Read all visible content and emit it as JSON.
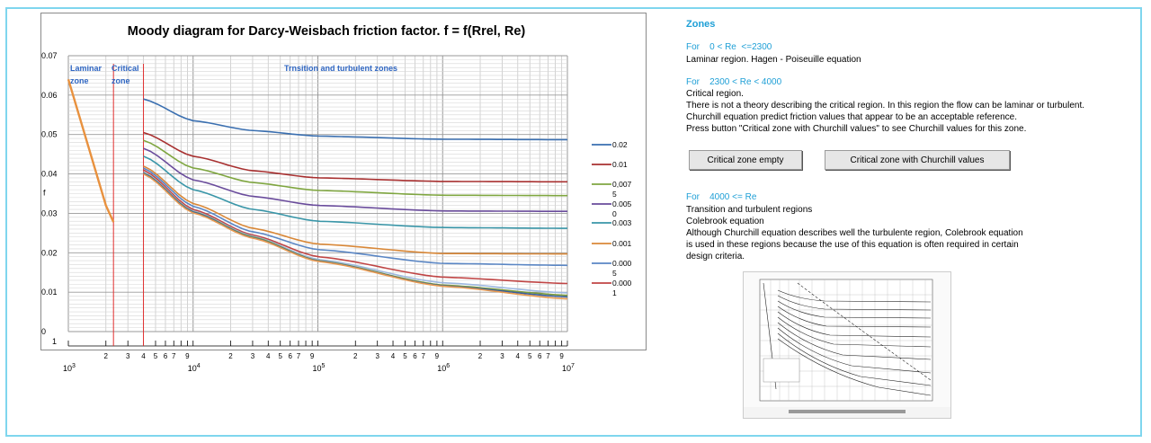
{
  "chart_data": {
    "type": "line",
    "title": "Moody diagram  for Darcy-Weisbach friction factor.    f = f(Rrel, Re)",
    "ylabel": "f",
    "ylim": [
      0,
      0.07
    ],
    "xscale": "log",
    "xlim": [
      1000,
      10000000
    ],
    "yticks": [
      "0.07",
      "0.06",
      "0.05",
      "0.04",
      "0.03",
      "0.02",
      "0.01",
      "0"
    ],
    "ybottom_label": "1",
    "xticks_major": [
      "10",
      "10",
      "10",
      "10",
      "10"
    ],
    "xticks_major_exp": [
      "3",
      "4",
      "5",
      "6",
      "7"
    ],
    "xticks_minor_labels": [
      "2",
      "3",
      "4",
      "5",
      "6",
      "7",
      "9"
    ],
    "zone_labels": [
      {
        "line1": "Laminar",
        "line2": "zone"
      },
      {
        "line1": "Critical",
        "line2": "zone"
      },
      {
        "line1": "Trnsition and turbulent zones",
        "line2": ""
      }
    ],
    "laminar": {
      "x": [
        1000,
        2000,
        2300
      ],
      "y": [
        0.064,
        0.032,
        0.0278
      ]
    },
    "critical_bounds": [
      2300,
      4000
    ],
    "grid": true,
    "legend_position": "right",
    "legend": [
      {
        "label": "0.02",
        "label2": ""
      },
      {
        "label": "0.01",
        "label2": ""
      },
      {
        "label": "0,007",
        "label2": "5"
      },
      {
        "label": "0.005",
        "label2": "0"
      },
      {
        "label": "0.003",
        "label2": ""
      },
      {
        "label": "0.001",
        "label2": ""
      },
      {
        "label": "0.000",
        "label2": "5"
      },
      {
        "label": "0.000",
        "label2": "1"
      }
    ],
    "series": [
      {
        "name": "0.02",
        "color": "#3a6fb0",
        "values": [
          [
            4000,
            0.059
          ],
          [
            10000,
            0.0535
          ],
          [
            30000,
            0.051
          ],
          [
            100000,
            0.0496
          ],
          [
            1000000,
            0.0488
          ],
          [
            10000000,
            0.0487
          ]
        ]
      },
      {
        "name": "0.01",
        "color": "#a83030",
        "values": [
          [
            4000,
            0.0505
          ],
          [
            10000,
            0.0445
          ],
          [
            30000,
            0.0408
          ],
          [
            100000,
            0.039
          ],
          [
            1000000,
            0.0381
          ],
          [
            10000000,
            0.038
          ]
        ]
      },
      {
        "name": "0,0075",
        "color": "#7fa640",
        "values": [
          [
            4000,
            0.0485
          ],
          [
            10000,
            0.0415
          ],
          [
            30000,
            0.0378
          ],
          [
            100000,
            0.0358
          ],
          [
            1000000,
            0.0346
          ],
          [
            10000000,
            0.0345
          ]
        ]
      },
      {
        "name": "0.0050",
        "color": "#6a4c9c",
        "values": [
          [
            4000,
            0.0465
          ],
          [
            10000,
            0.0385
          ],
          [
            30000,
            0.0343
          ],
          [
            100000,
            0.032
          ],
          [
            1000000,
            0.0306
          ],
          [
            10000000,
            0.0305
          ]
        ]
      },
      {
        "name": "0.003",
        "color": "#3a96a8",
        "values": [
          [
            4000,
            0.0445
          ],
          [
            10000,
            0.036
          ],
          [
            30000,
            0.031
          ],
          [
            100000,
            0.028
          ],
          [
            1000000,
            0.0264
          ],
          [
            10000000,
            0.0262
          ]
        ]
      },
      {
        "name": "0.001",
        "color": "#d98838",
        "values": [
          [
            4000,
            0.042
          ],
          [
            10000,
            0.0325
          ],
          [
            30000,
            0.0262
          ],
          [
            100000,
            0.0222
          ],
          [
            1000000,
            0.0198
          ],
          [
            10000000,
            0.0197
          ]
        ]
      },
      {
        "name": "0.0005",
        "color": "#5a86c4",
        "values": [
          [
            4000,
            0.0415
          ],
          [
            10000,
            0.0318
          ],
          [
            30000,
            0.0253
          ],
          [
            100000,
            0.0208
          ],
          [
            1000000,
            0.0173
          ],
          [
            10000000,
            0.0168
          ]
        ]
      },
      {
        "name": "0.0001",
        "color": "#c04545",
        "values": [
          [
            4000,
            0.041
          ],
          [
            10000,
            0.031
          ],
          [
            30000,
            0.0245
          ],
          [
            100000,
            0.019
          ],
          [
            1000000,
            0.0138
          ],
          [
            10000000,
            0.0122
          ]
        ]
      },
      {
        "name": "",
        "color": "#9db8e0",
        "values": [
          [
            4000,
            0.0405
          ],
          [
            10000,
            0.0306
          ],
          [
            30000,
            0.0242
          ],
          [
            100000,
            0.0183
          ],
          [
            1000000,
            0.0124
          ],
          [
            10000000,
            0.0098
          ]
        ]
      },
      {
        "name": "",
        "color": "#7a9a3a",
        "values": [
          [
            4000,
            0.0403
          ],
          [
            10000,
            0.0304
          ],
          [
            30000,
            0.024
          ],
          [
            100000,
            0.018
          ],
          [
            1000000,
            0.0118
          ],
          [
            10000000,
            0.0092
          ]
        ]
      },
      {
        "name": "",
        "color": "#3a5fa0",
        "values": [
          [
            4000,
            0.0402
          ],
          [
            10000,
            0.0303
          ],
          [
            30000,
            0.0238
          ],
          [
            100000,
            0.0179
          ],
          [
            1000000,
            0.0116
          ],
          [
            10000000,
            0.0088
          ]
        ]
      },
      {
        "name": "",
        "color": "#e89a50",
        "values": [
          [
            4000,
            0.04
          ],
          [
            10000,
            0.0301
          ],
          [
            30000,
            0.0237
          ],
          [
            100000,
            0.0178
          ],
          [
            1000000,
            0.0115
          ],
          [
            10000000,
            0.0083
          ]
        ]
      }
    ]
  },
  "panel": {
    "zones_title": "Zones",
    "zone1_cond": "For    0 < Re  <=2300",
    "zone1_desc": "Laminar region. Hagen - Poiseuille equation",
    "zone2_cond": "For    2300 < Re < 4000",
    "zone2_lines": [
      "Critical region.",
      "There is not a theory describing the critical region. In this region the flow can be laminar or turbulent.",
      "Churchill equation predict friction values that appear to be an acceptable  reference.",
      "Press button \"Critical zone with Churchill values\" to see Churchill values for this zone."
    ],
    "btn_empty": "Critical zone empty",
    "btn_churchill": "Critical zone with Churchill values",
    "zone3_cond": "For    4000 <= Re",
    "zone3_lines": [
      "Transition and turbulent regions",
      "Colebrook equation",
      "Although Churchill equation describes well the turbulente region, Colebrook equation",
      "is used in these regions because the use of this equation is often required in certain",
      "design criteria."
    ]
  }
}
